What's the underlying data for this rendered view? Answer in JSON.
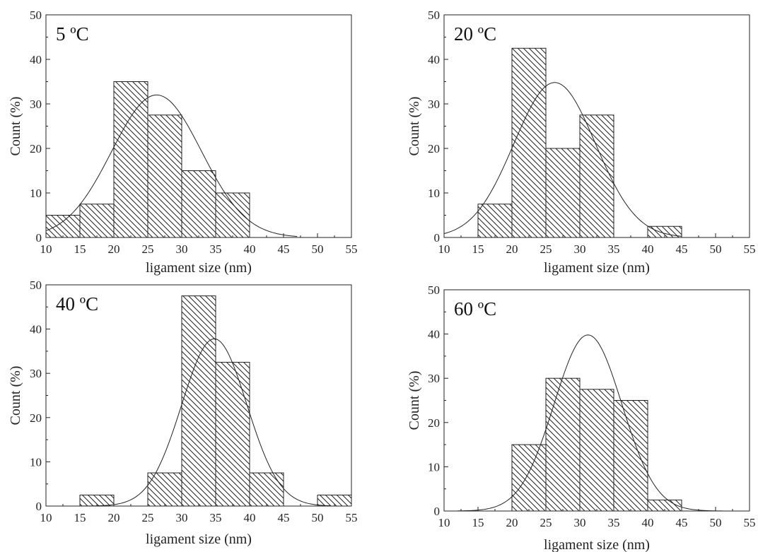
{
  "chart_data": [
    {
      "type": "bar",
      "label": "5 ºC",
      "xlabel": "ligament size (nm)",
      "ylabel": "Count (%)",
      "xlim": [
        10,
        55
      ],
      "ylim": [
        0,
        50
      ],
      "xticks": [
        10,
        15,
        20,
        25,
        30,
        35,
        40,
        45,
        50,
        55
      ],
      "yticks": [
        0,
        10,
        20,
        30,
        40,
        50
      ],
      "bin_width": 5,
      "bins": [
        10,
        15,
        20,
        25,
        30,
        35
      ],
      "values": [
        5,
        7.5,
        35,
        27.5,
        15,
        10
      ],
      "fit": {
        "type": "gaussian",
        "mean": 26.3,
        "sigma": 6.6,
        "peak": 32,
        "x_range": [
          10,
          47
        ]
      }
    },
    {
      "type": "bar",
      "label": "20 ºC",
      "xlabel": "ligament size (nm)",
      "ylabel": "Count (%)",
      "xlim": [
        10,
        55
      ],
      "ylim": [
        0,
        50
      ],
      "xticks": [
        10,
        15,
        20,
        25,
        30,
        35,
        40,
        45,
        50,
        55
      ],
      "yticks": [
        0,
        10,
        20,
        30,
        40,
        50
      ],
      "bin_width": 5,
      "bins": [
        15,
        20,
        25,
        30,
        40
      ],
      "values": [
        7.5,
        42.5,
        20,
        27.5,
        2.5
      ],
      "fit": {
        "type": "gaussian",
        "mean": 26.3,
        "sigma": 6.0,
        "peak": 34.8,
        "x_range": [
          10,
          45
        ]
      }
    },
    {
      "type": "bar",
      "label": "40 ºC",
      "xlabel": "ligament size (nm)",
      "ylabel": "Count (%)",
      "xlim": [
        10,
        55
      ],
      "ylim": [
        0,
        50
      ],
      "xticks": [
        10,
        15,
        20,
        25,
        30,
        35,
        40,
        45,
        50,
        55
      ],
      "yticks": [
        0,
        10,
        20,
        30,
        40,
        50
      ],
      "bin_width": 5,
      "bins": [
        15,
        25,
        30,
        35,
        40,
        50
      ],
      "values": [
        2.5,
        7.5,
        47.5,
        32.5,
        7.5,
        2.5
      ],
      "fit": {
        "type": "gaussian",
        "mean": 34.8,
        "sigma": 4.8,
        "peak": 37.8,
        "x_range": [
          15,
          52
        ]
      }
    },
    {
      "type": "bar",
      "label": "60 ºC",
      "xlabel": "ligament size (nm)",
      "ylabel": "Count (%)",
      "xlim": [
        10,
        55
      ],
      "ylim": [
        0,
        50
      ],
      "xticks": [
        10,
        15,
        20,
        25,
        30,
        35,
        40,
        45,
        50,
        55
      ],
      "yticks": [
        0,
        10,
        20,
        30,
        40,
        50
      ],
      "bin_width": 5,
      "bins": [
        20,
        25,
        30,
        35,
        40
      ],
      "values": [
        15,
        30,
        27.5,
        25,
        2.5
      ],
      "fit": {
        "type": "gaussian",
        "mean": 31.2,
        "sigma": 5.0,
        "peak": 39.8,
        "x_range": [
          12,
          51
        ]
      }
    }
  ]
}
